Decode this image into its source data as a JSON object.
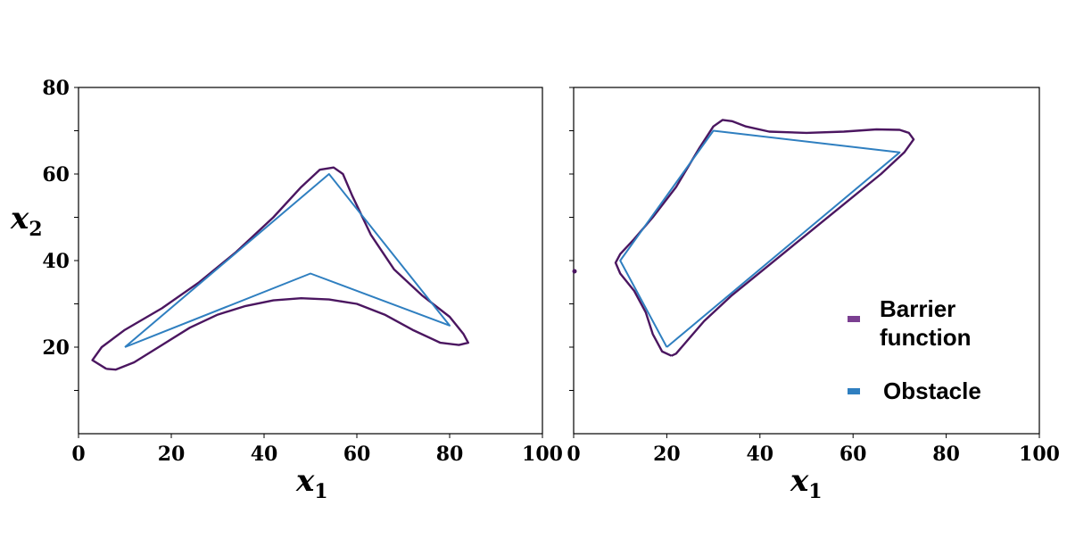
{
  "chart_data": [
    {
      "type": "line",
      "xlabel": "x",
      "xlabel_sub": "1",
      "ylabel": "x",
      "ylabel_sub": "2",
      "xlim": [
        0,
        100
      ],
      "ylim": [
        0,
        80
      ],
      "x_ticks": [
        0,
        20,
        40,
        60,
        80,
        100
      ],
      "y_ticks": [
        20,
        40,
        60,
        80
      ],
      "grid": false,
      "series": [
        {
          "name": "Barrier function",
          "color": "#4b1660",
          "points": [
            [
              6,
              15
            ],
            [
              3,
              17
            ],
            [
              5,
              20
            ],
            [
              10,
              24
            ],
            [
              18,
              29
            ],
            [
              26,
              35
            ],
            [
              34,
              42
            ],
            [
              42,
              50
            ],
            [
              48,
              57
            ],
            [
              52,
              61
            ],
            [
              55,
              61.5
            ],
            [
              57,
              60
            ],
            [
              59,
              55
            ],
            [
              63,
              46
            ],
            [
              68,
              38
            ],
            [
              74,
              32
            ],
            [
              80,
              27
            ],
            [
              83,
              23
            ],
            [
              84,
              21
            ],
            [
              82,
              20.5
            ],
            [
              78,
              21
            ],
            [
              72,
              24
            ],
            [
              66,
              27.5
            ],
            [
              60,
              30
            ],
            [
              54,
              31
            ],
            [
              48,
              31.3
            ],
            [
              42,
              30.8
            ],
            [
              36,
              29.5
            ],
            [
              30,
              27.5
            ],
            [
              24,
              24.5
            ],
            [
              18,
              20.5
            ],
            [
              12,
              16.5
            ],
            [
              8,
              14.8
            ],
            [
              6,
              15
            ]
          ]
        },
        {
          "name": "Obstacle",
          "color": "#2f7fc0",
          "points": [
            [
              10,
              20
            ],
            [
              54,
              60
            ],
            [
              80,
              25
            ],
            [
              50,
              37
            ],
            [
              10,
              20
            ]
          ]
        }
      ]
    },
    {
      "type": "line",
      "xlabel": "x",
      "xlabel_sub": "1",
      "xlim": [
        0,
        100
      ],
      "ylim": [
        0,
        80
      ],
      "x_ticks": [
        0,
        20,
        40,
        60,
        80,
        100
      ],
      "grid": false,
      "legend": "bottom-right",
      "series": [
        {
          "name": "Barrier function",
          "color": "#4b1660",
          "points": [
            [
              21,
              18
            ],
            [
              19,
              19
            ],
            [
              17,
              23
            ],
            [
              15.5,
              28
            ],
            [
              13,
              33
            ],
            [
              10,
              37
            ],
            [
              9,
              39.5
            ],
            [
              10,
              41.5
            ],
            [
              13,
              45
            ],
            [
              17,
              50
            ],
            [
              22,
              57
            ],
            [
              27,
              66
            ],
            [
              30,
              71
            ],
            [
              32,
              72.5
            ],
            [
              34,
              72.2
            ],
            [
              37,
              71
            ],
            [
              42,
              69.8
            ],
            [
              50,
              69.5
            ],
            [
              58,
              69.8
            ],
            [
              65,
              70.3
            ],
            [
              70,
              70.2
            ],
            [
              72,
              69.5
            ],
            [
              73,
              68
            ],
            [
              71,
              65
            ],
            [
              66,
              60
            ],
            [
              58,
              53
            ],
            [
              50,
              46
            ],
            [
              42,
              39
            ],
            [
              34,
              32
            ],
            [
              28,
              26
            ],
            [
              24,
              21
            ],
            [
              22,
              18.5
            ],
            [
              21,
              18
            ]
          ]
        },
        {
          "name": "Obstacle",
          "color": "#2f7fc0",
          "points": [
            [
              20,
              20
            ],
            [
              10,
              40
            ],
            [
              30,
              70
            ],
            [
              70,
              65
            ],
            [
              20,
              20
            ]
          ]
        }
      ]
    }
  ],
  "legend": {
    "items": [
      {
        "label_line1": "Barrier",
        "label_line2": "function",
        "color": "#7b3f91"
      },
      {
        "label_line1": "Obstacle",
        "label_line2": "",
        "color": "#2f7fc0"
      }
    ]
  }
}
